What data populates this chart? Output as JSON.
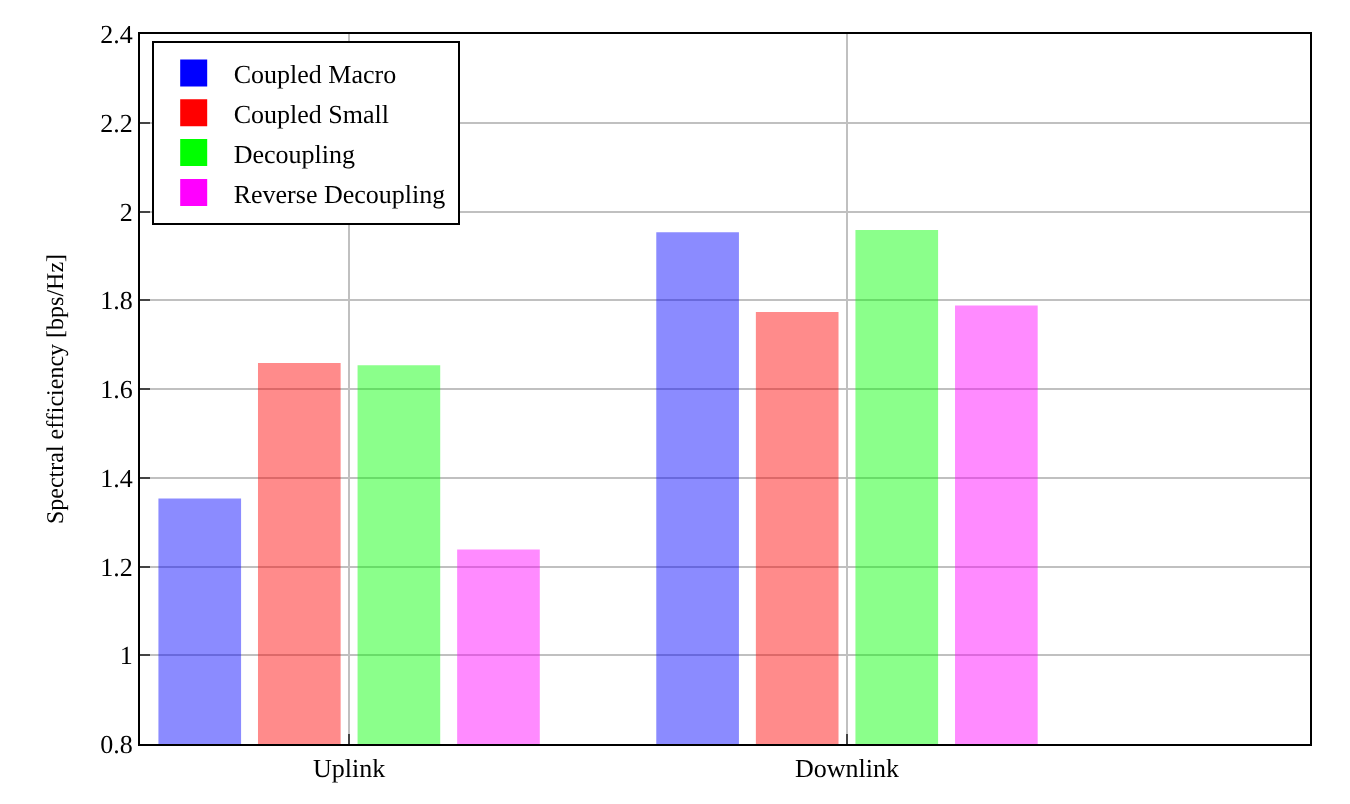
{
  "chart_data": {
    "type": "bar",
    "ylabel": "Spectral efficiency [bps/Hz]",
    "categories": [
      "Uplink",
      "Downlink"
    ],
    "series": [
      {
        "name": "Coupled Macro",
        "color": "#0000ff",
        "values": [
          1.35,
          1.95
        ]
      },
      {
        "name": "Coupled Small",
        "color": "#ff0000",
        "values": [
          1.655,
          1.77
        ]
      },
      {
        "name": "Decoupling",
        "color": "#00ff00",
        "values": [
          1.65,
          1.955
        ]
      },
      {
        "name": "Reverse Decoupling",
        "color": "#ff00ff",
        "values": [
          1.235,
          1.785
        ]
      }
    ],
    "ylim": [
      0.8,
      2.4
    ],
    "yticks": [
      0.8,
      1,
      1.2,
      1.4,
      1.6,
      1.8,
      2,
      2.2,
      2.4
    ],
    "grid": true,
    "legend": "top left"
  }
}
